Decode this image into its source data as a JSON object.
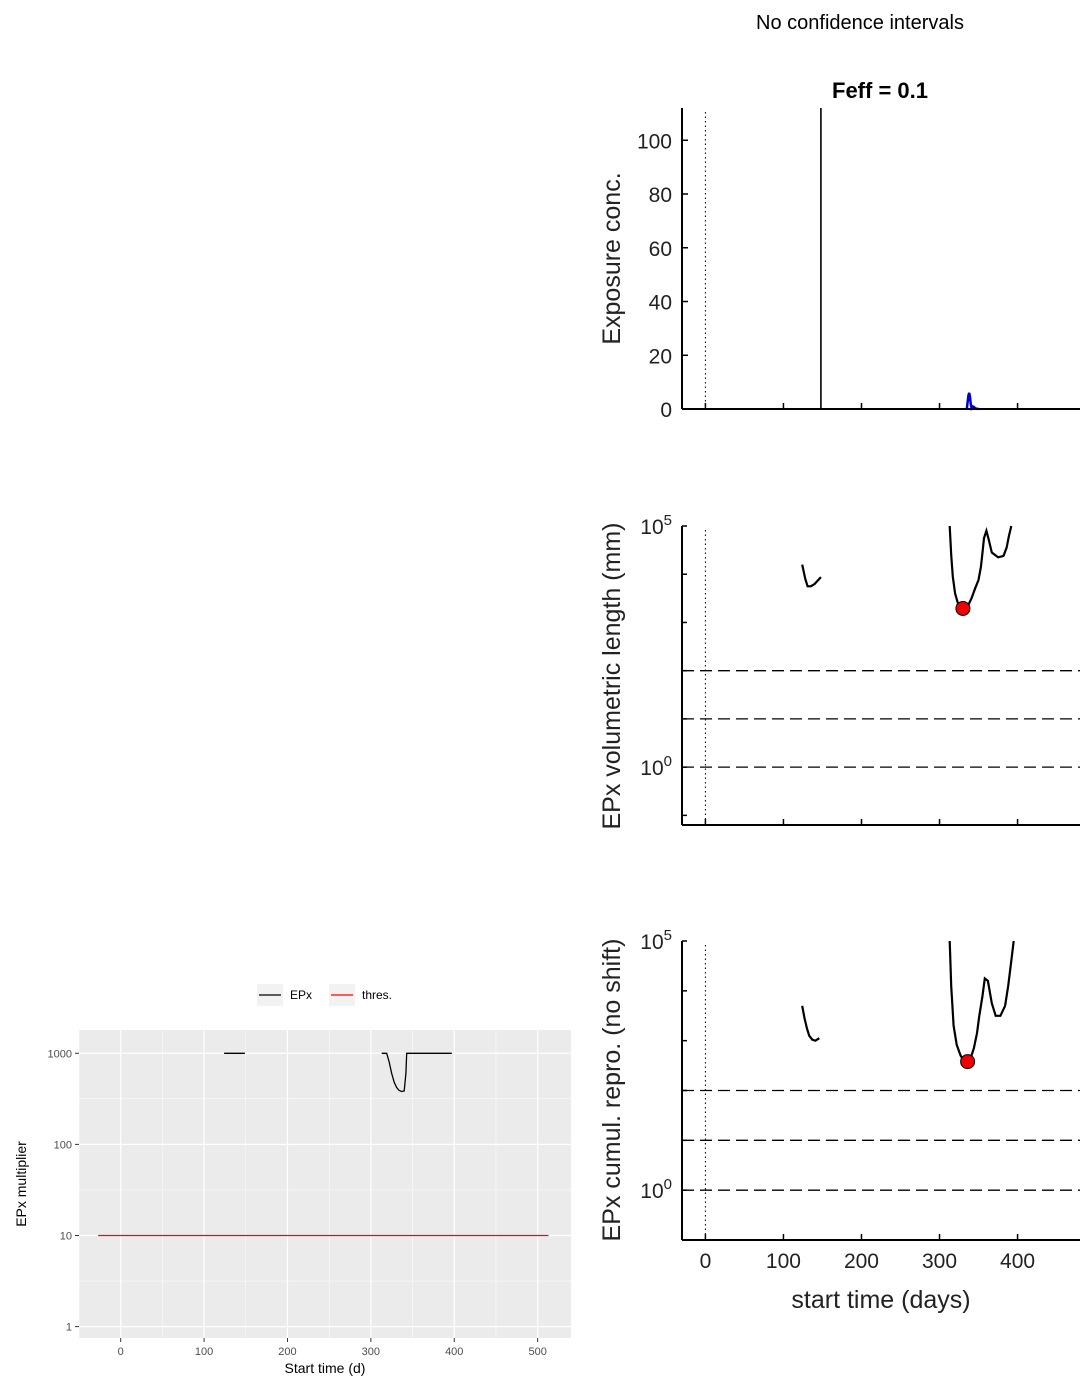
{
  "figure": {
    "suptitle": "No confidence intervals",
    "title": "Feff = 0.1"
  },
  "chart_data": [
    {
      "id": "exposure",
      "type": "line",
      "title": "Feff = 0.1",
      "xlabel": "",
      "ylabel": "Exposure conc.",
      "xlim": [
        -30,
        480
      ],
      "ylim": [
        0,
        112
      ],
      "yticks": [
        0,
        20,
        40,
        60,
        80,
        100
      ],
      "xticks": [
        0,
        100,
        200,
        300,
        400
      ],
      "vline_dotted": 0,
      "spike": {
        "x": 148,
        "y": 112
      },
      "series": [
        {
          "color": "#0000cc",
          "x": [
            335,
            337,
            338,
            339,
            340,
            341,
            342,
            344,
            346,
            350
          ],
          "y": [
            0,
            5,
            6,
            4.5,
            2,
            0.5,
            1,
            0.8,
            0.2,
            0
          ]
        }
      ]
    },
    {
      "id": "epx-length",
      "type": "line",
      "xlabel": "",
      "ylabel": "EPx volumetric length (mm)",
      "yscale": "log",
      "xlim": [
        -30,
        480
      ],
      "ylim_log10": [
        -1.2,
        5
      ],
      "ytick_labels": [
        {
          "base": "10",
          "exp": "5",
          "log10": 5
        },
        {
          "base": "10",
          "exp": "0",
          "log10": 0
        }
      ],
      "xticks": [
        0,
        100,
        200,
        300,
        400
      ],
      "vline_dotted": 0,
      "hlines_log10": [
        0,
        1,
        2
      ],
      "series": [
        {
          "x": [
            124,
            128,
            131,
            135,
            140,
            144,
            148
          ],
          "y_log10": [
            4.2,
            3.9,
            3.75,
            3.75,
            3.8,
            3.87,
            3.94
          ]
        },
        {
          "x": [
            313,
            315,
            317,
            320,
            325,
            330,
            336,
            341,
            346,
            350,
            353,
            355,
            357,
            360,
            363,
            367,
            375,
            382,
            386,
            389,
            392
          ],
          "y_log10": [
            5,
            4.4,
            3.95,
            3.6,
            3.32,
            3.29,
            3.33,
            3.5,
            3.72,
            3.88,
            4.15,
            4.45,
            4.75,
            4.9,
            4.72,
            4.45,
            4.35,
            4.38,
            4.55,
            4.8,
            5
          ]
        }
      ],
      "marker": {
        "x": 330,
        "y_log10": 3.29,
        "color": "#ee0000"
      }
    },
    {
      "id": "epx-repro",
      "type": "line",
      "xlabel": "start time (days)",
      "ylabel": "EPx cumul. repro. (no shift)",
      "yscale": "log",
      "xlim": [
        -30,
        480
      ],
      "xticks": [
        0,
        100,
        200,
        300,
        400
      ],
      "ylim_log10": [
        -1,
        5
      ],
      "ytick_labels": [
        {
          "base": "10",
          "exp": "5",
          "log10": 5
        },
        {
          "base": "10",
          "exp": "0",
          "log10": 0
        }
      ],
      "vline_dotted": 0,
      "hlines_log10": [
        0,
        1,
        2
      ],
      "series": [
        {
          "x": [
            124,
            127,
            130,
            133,
            137,
            141,
            146
          ],
          "y_log10": [
            3.7,
            3.45,
            3.25,
            3.1,
            3.02,
            3.0,
            3.05
          ]
        },
        {
          "x": [
            313,
            315,
            318,
            322,
            327,
            332,
            336,
            340,
            344,
            348,
            351,
            355,
            358,
            362,
            367,
            372,
            378,
            384,
            388,
            392,
            395
          ],
          "y_log10": [
            5,
            4.1,
            3.3,
            2.92,
            2.7,
            2.58,
            2.58,
            2.65,
            2.85,
            3.15,
            3.5,
            3.9,
            4.25,
            4.2,
            3.75,
            3.5,
            3.5,
            3.7,
            4.1,
            4.6,
            5
          ]
        }
      ],
      "marker": {
        "x": 336,
        "y_log10": 2.58,
        "color": "#ee0000"
      }
    },
    {
      "id": "epx-multiplier",
      "type": "line",
      "xlabel": "Start time (d)",
      "ylabel": "EPx multiplier",
      "yscale": "log",
      "xlim": [
        -50,
        540
      ],
      "ylim": [
        0.75,
        1800
      ],
      "xticks": [
        0,
        100,
        200,
        300,
        400,
        500
      ],
      "yticks": [
        1,
        10,
        100,
        1000
      ],
      "ytick_labels": [
        "1",
        "10",
        "100",
        "1000"
      ],
      "legend": [
        "EPx",
        "thres."
      ],
      "legend_position": "top",
      "series": [
        {
          "name": "EPx",
          "color": "#000000",
          "segments": [
            {
              "x": [
                124,
                149
              ],
              "y": [
                1000,
                1000
              ]
            },
            {
              "x": [
                313,
                319,
                322,
                325,
                328,
                331,
                334,
                337,
                340,
                342,
                343,
                345,
                350,
                370,
                397
              ],
              "y": [
                1000,
                1000,
                800,
                600,
                480,
                420,
                390,
                380,
                385,
                600,
                1000,
                1000,
                1000,
                1000,
                1000
              ]
            }
          ]
        },
        {
          "name": "thres.",
          "color": "#ff0000",
          "segments": [
            {
              "x": [
                -27,
                513
              ],
              "y": [
                10,
                10
              ]
            }
          ]
        }
      ]
    }
  ]
}
